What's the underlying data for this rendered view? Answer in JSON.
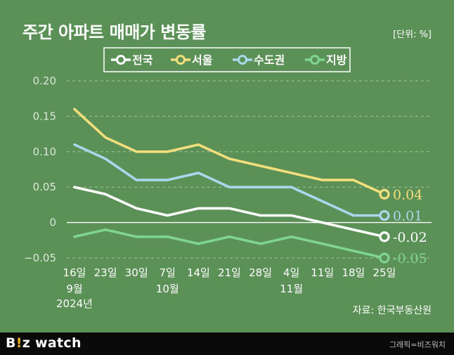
{
  "header": {
    "title": "주간 아파트 매매가 변동률",
    "unit": "[단위: %]"
  },
  "source": "자료: 한국부동산원",
  "footer": {
    "brand_prefix": "B",
    "brand_excl": "!",
    "brand_suffix": "z watch",
    "credit": "그래픽=비즈워치"
  },
  "chart_data": {
    "type": "line",
    "title": "주간 아파트 매매가 변동률",
    "ylabel": "[단위: %]",
    "ylim": [
      -0.05,
      0.2
    ],
    "yticks": [
      -0.05,
      0,
      0.05,
      0.1,
      0.15,
      0.2
    ],
    "ytick_labels": [
      "−0.05",
      "0",
      "0.05",
      "0.10",
      "0.15",
      "0.20"
    ],
    "grid": true,
    "legend_position": "top-center",
    "categories": [
      "16일",
      "23일",
      "30일",
      "7일",
      "14일",
      "21일",
      "28일",
      "4일",
      "11일",
      "18일",
      "25일"
    ],
    "category_sublabels": [
      "9월",
      "",
      "",
      "10월",
      "",
      "",
      "",
      "11월",
      "",
      "",
      ""
    ],
    "year_label": "2024년",
    "series": [
      {
        "name": "전국",
        "color": "#ffffff",
        "values": [
          0.05,
          0.04,
          0.02,
          0.01,
          0.02,
          0.02,
          0.01,
          0.01,
          0.0,
          -0.01,
          -0.02
        ],
        "end_label": "-0.02"
      },
      {
        "name": "서울",
        "color": "#f2de7d",
        "values": [
          0.16,
          0.12,
          0.1,
          0.1,
          0.11,
          0.09,
          0.08,
          0.07,
          0.06,
          0.06,
          0.04
        ],
        "end_label": "0.04"
      },
      {
        "name": "수도권",
        "color": "#a9d8ec",
        "values": [
          0.11,
          0.09,
          0.06,
          0.06,
          0.07,
          0.05,
          0.05,
          0.05,
          0.03,
          0.01,
          0.01
        ],
        "end_label": "0.01"
      },
      {
        "name": "지방",
        "color": "#7fd492",
        "values": [
          -0.02,
          -0.01,
          -0.02,
          -0.02,
          -0.03,
          -0.02,
          -0.03,
          -0.02,
          -0.03,
          -0.04,
          -0.05
        ],
        "end_label": "-0.05"
      }
    ]
  }
}
